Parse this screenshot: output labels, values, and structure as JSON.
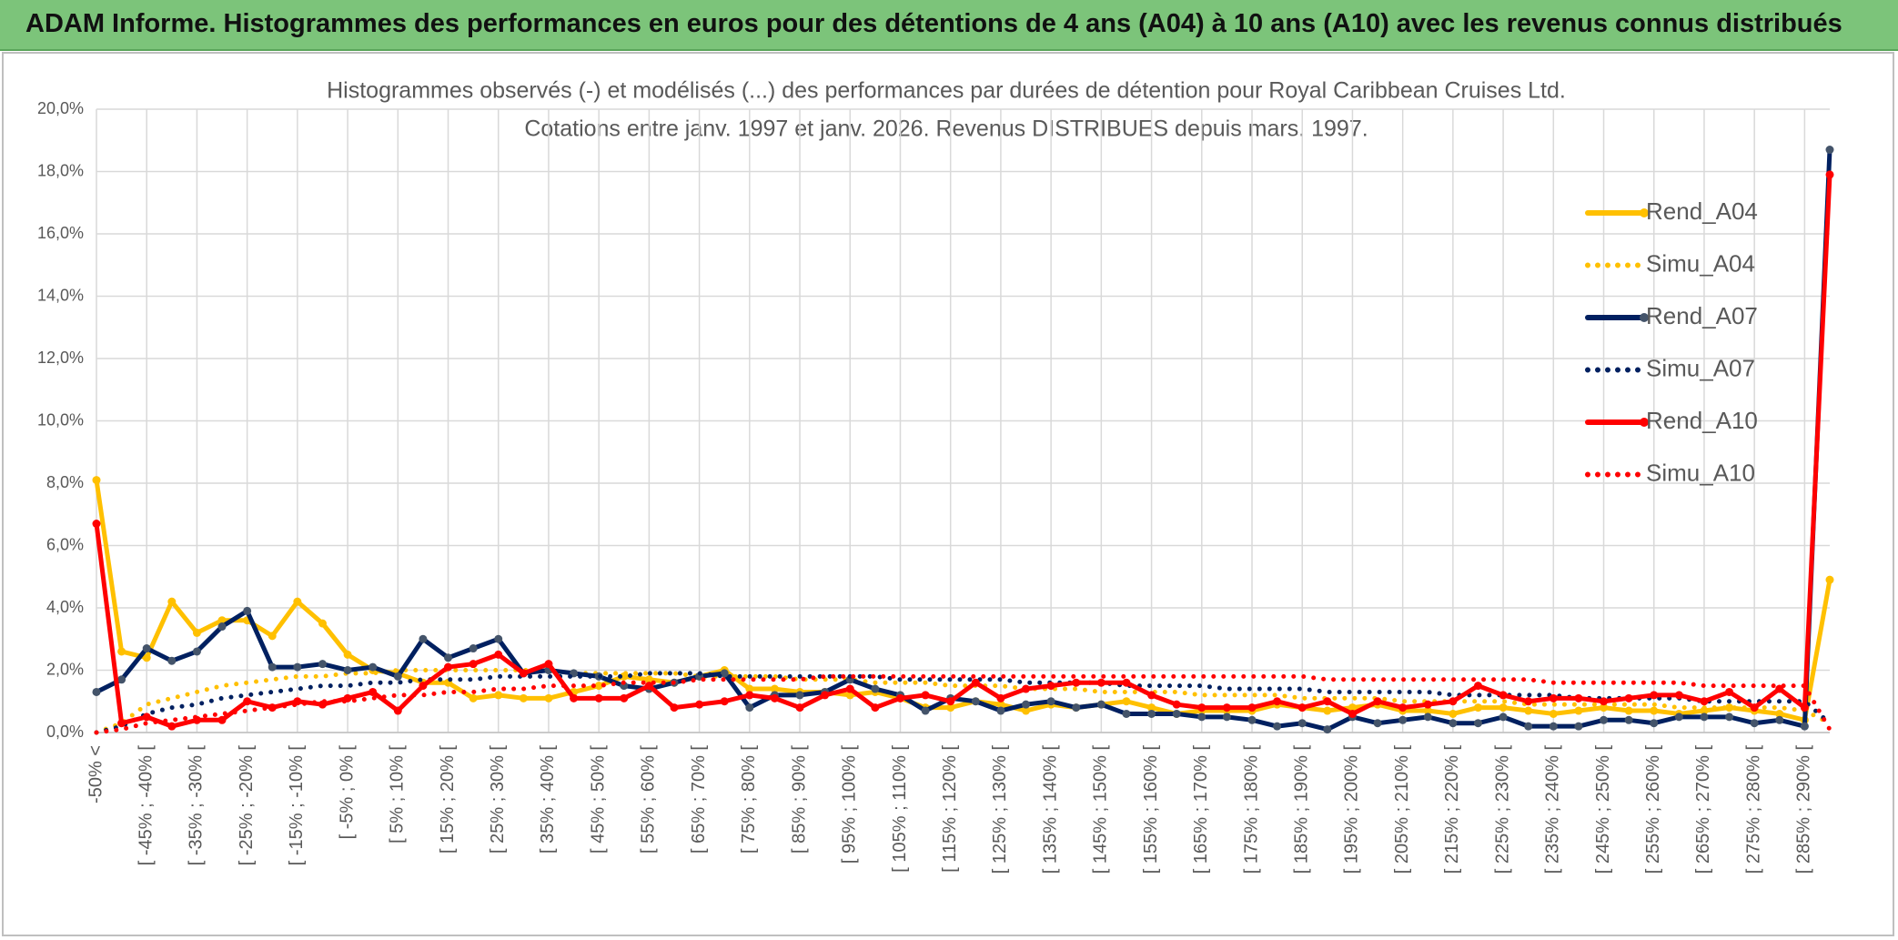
{
  "header": {
    "title": "ADAM Informe. Histogrammes des performances en euros pour des détentions de 4 ans (A04) à 10 ans (A10) avec les revenus connus distribués"
  },
  "chart_data": {
    "type": "line",
    "title": "Histogrammes observés (-) et modélisés (...) des performances par durées de détention pour Royal Caribbean Cruises Ltd.",
    "subtitle": "Cotations entre janv. 1997 et janv. 2026.  Revenus DISTRIBUES depuis mars. 1997.",
    "categories": [
      "-50% <",
      null,
      "[ -45% ; -40% [",
      null,
      "[ -35% ; -30% [",
      null,
      "[ -25% ; -20% [",
      null,
      "[ -15% ; -10% [",
      null,
      "[ -5% ; 0% [",
      null,
      "[ 5% ; 10% [",
      null,
      "[ 15% ; 20% [",
      null,
      "[ 25% ; 30% [",
      null,
      "[ 35% ; 40% [",
      null,
      "[ 45% ; 50% [",
      null,
      "[ 55% ; 60% [",
      null,
      "[ 65% ; 70% [",
      null,
      "[ 75% ; 80% [",
      null,
      "[ 85% ; 90% [",
      null,
      "[ 95% ; 100% [",
      null,
      "[ 105% ; 110% [",
      null,
      "[ 115% ; 120% [",
      null,
      "[ 125% ; 130% [",
      null,
      "[ 135% ; 140% [",
      null,
      "[ 145% ; 150% [",
      null,
      "[ 155% ; 160% [",
      null,
      "[ 165% ; 170% [",
      null,
      "[ 175% ; 180% [",
      null,
      "[ 185% ; 190% [",
      null,
      "[ 195% ; 200% [",
      null,
      "[ 205% ; 210% [",
      null,
      "[ 215% ; 220% [",
      null,
      "[ 225% ; 230% [",
      null,
      "[ 235% ; 240% [",
      null,
      "[ 245% ; 250% [",
      null,
      "[ 255% ; 260% [",
      null,
      "[ 265% ; 270% [",
      null,
      "[ 275% ; 280% [",
      null,
      "[ 285% ; 290% [",
      null
    ],
    "ylim": [
      0,
      20
    ],
    "yticks": [
      {
        "value": 0,
        "label": "0,0%"
      },
      {
        "value": 2,
        "label": "2,0%"
      },
      {
        "value": 4,
        "label": "4,0%"
      },
      {
        "value": 6,
        "label": "6,0%"
      },
      {
        "value": 8,
        "label": "8,0%"
      },
      {
        "value": 10,
        "label": "10,0%"
      },
      {
        "value": 12,
        "label": "12,0%"
      },
      {
        "value": 14,
        "label": "14,0%"
      },
      {
        "value": 16,
        "label": "16,0%"
      },
      {
        "value": 18,
        "label": "18,0%"
      },
      {
        "value": 20,
        "label": "20,0%"
      }
    ],
    "grid": true,
    "legend": "right",
    "series": [
      {
        "name": "Rend_A04",
        "color": "#ffc000",
        "style": "solid",
        "values": [
          8.1,
          2.6,
          2.4,
          4.2,
          3.2,
          3.6,
          3.6,
          3.1,
          4.2,
          3.5,
          2.5,
          2.0,
          1.9,
          1.6,
          1.6,
          1.1,
          1.2,
          1.1,
          1.1,
          1.3,
          1.5,
          1.8,
          1.7,
          1.6,
          1.8,
          2.0,
          1.4,
          1.4,
          1.3,
          1.3,
          1.2,
          1.3,
          1.1,
          0.8,
          0.8,
          1.0,
          0.9,
          0.7,
          0.9,
          0.8,
          0.9,
          1.0,
          0.8,
          0.6,
          0.7,
          0.7,
          0.7,
          0.9,
          0.8,
          0.7,
          0.8,
          0.9,
          0.7,
          0.7,
          0.6,
          0.8,
          0.8,
          0.7,
          0.6,
          0.7,
          0.8,
          0.7,
          0.7,
          0.6,
          0.7,
          0.8,
          0.7,
          0.6,
          0.4,
          4.9
        ]
      },
      {
        "name": "Simu_A04",
        "color": "#ffc000",
        "style": "dotted",
        "values": [
          0,
          0.3,
          0.9,
          1.1,
          1.3,
          1.5,
          1.6,
          1.7,
          1.8,
          1.8,
          1.9,
          1.9,
          2.0,
          2.0,
          2.0,
          2.0,
          2.0,
          2.0,
          2.0,
          1.9,
          1.9,
          1.9,
          1.9,
          1.9,
          1.8,
          1.8,
          1.8,
          1.8,
          1.7,
          1.7,
          1.7,
          1.6,
          1.6,
          1.6,
          1.5,
          1.5,
          1.5,
          1.4,
          1.4,
          1.4,
          1.3,
          1.3,
          1.3,
          1.3,
          1.2,
          1.2,
          1.2,
          1.2,
          1.1,
          1.1,
          1.1,
          1.1,
          1.0,
          1.0,
          1.0,
          1.0,
          1.0,
          0.9,
          0.9,
          0.9,
          0.9,
          0.9,
          0.9,
          0.8,
          0.8,
          0.8,
          0.8,
          0.8,
          0.7,
          0.3
        ]
      },
      {
        "name": "Rend_A07",
        "color": "#002060",
        "style": "solid",
        "values": [
          1.3,
          1.7,
          2.7,
          2.3,
          2.6,
          3.4,
          3.9,
          2.1,
          2.1,
          2.2,
          2.0,
          2.1,
          1.8,
          3.0,
          2.4,
          2.7,
          3.0,
          1.9,
          2.0,
          1.9,
          1.8,
          1.5,
          1.4,
          1.6,
          1.8,
          1.9,
          0.8,
          1.2,
          1.2,
          1.3,
          1.7,
          1.4,
          1.2,
          0.7,
          1.1,
          1.0,
          0.7,
          0.9,
          1.0,
          0.8,
          0.9,
          0.6,
          0.6,
          0.6,
          0.5,
          0.5,
          0.4,
          0.2,
          0.3,
          0.1,
          0.5,
          0.3,
          0.4,
          0.5,
          0.3,
          0.3,
          0.5,
          0.2,
          0.2,
          0.2,
          0.4,
          0.4,
          0.3,
          0.5,
          0.5,
          0.5,
          0.3,
          0.4,
          0.2,
          18.7
        ]
      },
      {
        "name": "Simu_A07",
        "color": "#002060",
        "style": "dotted",
        "values": [
          0,
          0.2,
          0.6,
          0.8,
          0.9,
          1.1,
          1.2,
          1.3,
          1.4,
          1.5,
          1.5,
          1.6,
          1.6,
          1.7,
          1.7,
          1.7,
          1.8,
          1.8,
          1.8,
          1.8,
          1.8,
          1.8,
          1.9,
          1.9,
          1.9,
          1.8,
          1.8,
          1.8,
          1.8,
          1.8,
          1.8,
          1.8,
          1.7,
          1.7,
          1.7,
          1.7,
          1.7,
          1.6,
          1.6,
          1.6,
          1.6,
          1.5,
          1.5,
          1.5,
          1.5,
          1.4,
          1.4,
          1.4,
          1.4,
          1.3,
          1.3,
          1.3,
          1.3,
          1.3,
          1.2,
          1.2,
          1.2,
          1.2,
          1.2,
          1.1,
          1.1,
          1.1,
          1.1,
          1.1,
          1.0,
          1.0,
          1.0,
          1.0,
          1.0,
          0.3
        ]
      },
      {
        "name": "Rend_A10",
        "color": "#ff0000",
        "style": "solid",
        "values": [
          6.7,
          0.3,
          0.5,
          0.2,
          0.4,
          0.4,
          1.0,
          0.8,
          1.0,
          0.9,
          1.1,
          1.3,
          0.7,
          1.5,
          2.1,
          2.2,
          2.5,
          1.9,
          2.2,
          1.1,
          1.1,
          1.1,
          1.5,
          0.8,
          0.9,
          1.0,
          1.2,
          1.1,
          0.8,
          1.2,
          1.4,
          0.8,
          1.1,
          1.2,
          1.0,
          1.6,
          1.1,
          1.4,
          1.5,
          1.6,
          1.6,
          1.6,
          1.2,
          0.9,
          0.8,
          0.8,
          0.8,
          1.0,
          0.8,
          1.0,
          0.6,
          1.0,
          0.8,
          0.9,
          1.0,
          1.5,
          1.2,
          1.0,
          1.1,
          1.1,
          1.0,
          1.1,
          1.2,
          1.2,
          1.0,
          1.3,
          0.8,
          1.4,
          0.8,
          17.9
        ]
      },
      {
        "name": "Simu_A10",
        "color": "#ff0000",
        "style": "dotted",
        "values": [
          0,
          0.1,
          0.3,
          0.4,
          0.5,
          0.6,
          0.7,
          0.8,
          0.9,
          1.0,
          1.0,
          1.1,
          1.2,
          1.2,
          1.3,
          1.3,
          1.4,
          1.4,
          1.5,
          1.5,
          1.5,
          1.6,
          1.6,
          1.6,
          1.7,
          1.7,
          1.7,
          1.7,
          1.7,
          1.8,
          1.8,
          1.8,
          1.8,
          1.8,
          1.8,
          1.8,
          1.8,
          1.8,
          1.8,
          1.8,
          1.8,
          1.8,
          1.8,
          1.8,
          1.8,
          1.8,
          1.8,
          1.8,
          1.8,
          1.7,
          1.7,
          1.7,
          1.7,
          1.7,
          1.7,
          1.7,
          1.7,
          1.7,
          1.6,
          1.6,
          1.6,
          1.6,
          1.6,
          1.6,
          1.5,
          1.5,
          1.5,
          1.5,
          1.5,
          0.1
        ]
      }
    ]
  }
}
